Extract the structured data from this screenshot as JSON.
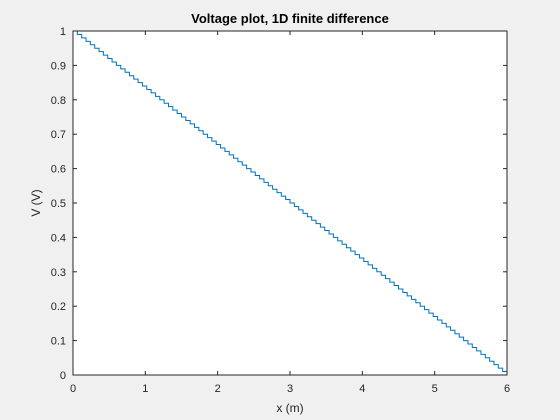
{
  "colors": {
    "figure_background": "#f0f0f0",
    "axes_background": "#ffffff",
    "axes_color": "#262626",
    "line_color": "#0072bd"
  },
  "chart_data": {
    "type": "line",
    "title": "Voltage plot, 1D finite difference",
    "xlabel": "x (m)",
    "ylabel": "V (V)",
    "xlim": [
      0,
      6
    ],
    "ylim": [
      0,
      1
    ],
    "xticks": [
      0,
      1,
      2,
      3,
      4,
      5,
      6
    ],
    "xtick_labels": [
      "0",
      "1",
      "2",
      "3",
      "4",
      "5",
      "6"
    ],
    "yticks": [
      0,
      0.1,
      0.2,
      0.3,
      0.4,
      0.5,
      0.6,
      0.7,
      0.8,
      0.9,
      1
    ],
    "ytick_labels": [
      "0",
      "0.1",
      "0.2",
      "0.3",
      "0.4",
      "0.5",
      "0.6",
      "0.7",
      "0.8",
      "0.9",
      "1"
    ],
    "grid": false,
    "line_style": "stairs",
    "series": [
      {
        "x": [
          0,
          6
        ],
        "y": [
          1,
          0
        ],
        "steps": 100
      }
    ]
  }
}
